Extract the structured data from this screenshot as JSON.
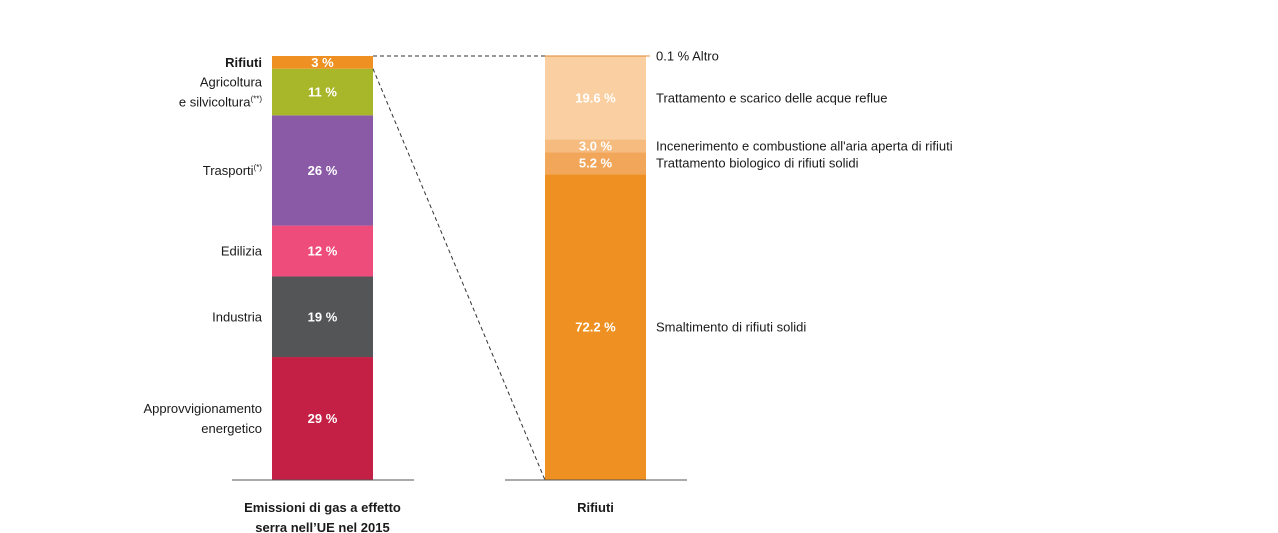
{
  "chart_data": [
    {
      "type": "bar",
      "stacked": true,
      "xlabel": [
        "Emissioni di gas a effetto",
        "serra nell’UE nel 2015"
      ],
      "segments": [
        {
          "label": [
            "Approvvigionamento",
            "energetico"
          ],
          "value": 29,
          "value_label": "29 %",
          "color": "#c41f44"
        },
        {
          "label": [
            "Industria"
          ],
          "value": 19,
          "value_label": "19 %",
          "color": "#545557"
        },
        {
          "label": [
            "Edilizia"
          ],
          "value": 12,
          "value_label": "12 %",
          "color": "#ee4d7c"
        },
        {
          "label": [
            "Trasporti"
          ],
          "label_sup": "(*)",
          "value": 26,
          "value_label": "26 %",
          "color": "#8a5aa7"
        },
        {
          "label": [
            "Agricoltura",
            "e silvicoltura"
          ],
          "label_sup": "(**)",
          "value": 11,
          "value_label": "11 %",
          "color": "#a8b62a"
        },
        {
          "label": [
            "Rifiuti"
          ],
          "bold": true,
          "value": 3,
          "value_label": "3 %",
          "color": "#ef9122"
        }
      ]
    },
    {
      "type": "bar",
      "stacked": true,
      "xlabel": [
        "Rifiuti"
      ],
      "segments": [
        {
          "label": "Smaltimento di rifiuti solidi",
          "value": 72.2,
          "value_label": "72.2 %",
          "color": "#ef9122"
        },
        {
          "label": "Trattamento biologico di rifiuti solidi",
          "value": 5.2,
          "value_label": "5.2 %",
          "color": "#f2a65a"
        },
        {
          "label": "Incenerimento e combustione all'aria aperta di rifiuti",
          "value": 3.0,
          "value_label": "3.0 %",
          "color": "#f6bb7f"
        },
        {
          "label": "Trattamento e scarico delle acque reflue",
          "value": 19.6,
          "value_label": "19.6 %",
          "color": "#fad0a3"
        },
        {
          "label": "Altro",
          "value": 0.1,
          "value_label": "0.1 %",
          "color": "#fde6cc",
          "label_outside": true
        }
      ]
    }
  ]
}
